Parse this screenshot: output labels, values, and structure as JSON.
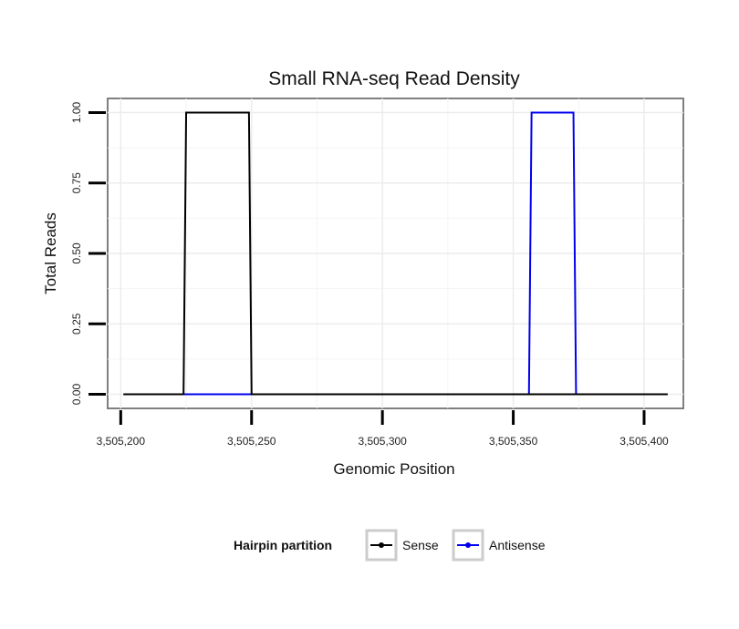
{
  "chart_data": {
    "type": "line",
    "title": "Small RNA-seq Read Density",
    "xlabel": "Genomic Position",
    "ylabel": "Total Reads",
    "xlim": [
      3505195,
      3505415
    ],
    "ylim": [
      -0.05,
      1.05
    ],
    "grid": true,
    "x_ticks": [
      3505200,
      3505250,
      3505300,
      3505350,
      3505400
    ],
    "x_tick_labels": [
      "3,505,200",
      "3,505,250",
      "3,505,300",
      "3,505,350",
      "3,505,400"
    ],
    "y_ticks": [
      0,
      0.25,
      0.5,
      0.75,
      1.0
    ],
    "y_tick_labels": [
      "0.00",
      "0.25",
      "0.50",
      "0.75",
      "1.00"
    ],
    "legend": {
      "title": "Hairpin partition",
      "position": "bottom"
    },
    "series": [
      {
        "name": "Sense",
        "color": "#000000",
        "x": [
          3505201,
          3505224,
          3505225,
          3505249,
          3505250,
          3505409
        ],
        "y": [
          0,
          0,
          1,
          1,
          0,
          0
        ]
      },
      {
        "name": "Antisense",
        "color": "#0000ee",
        "x": [
          3505224,
          3505356,
          3505357,
          3505373,
          3505374,
          3505409
        ],
        "y": [
          0,
          0,
          1,
          1,
          0,
          0
        ]
      }
    ]
  }
}
